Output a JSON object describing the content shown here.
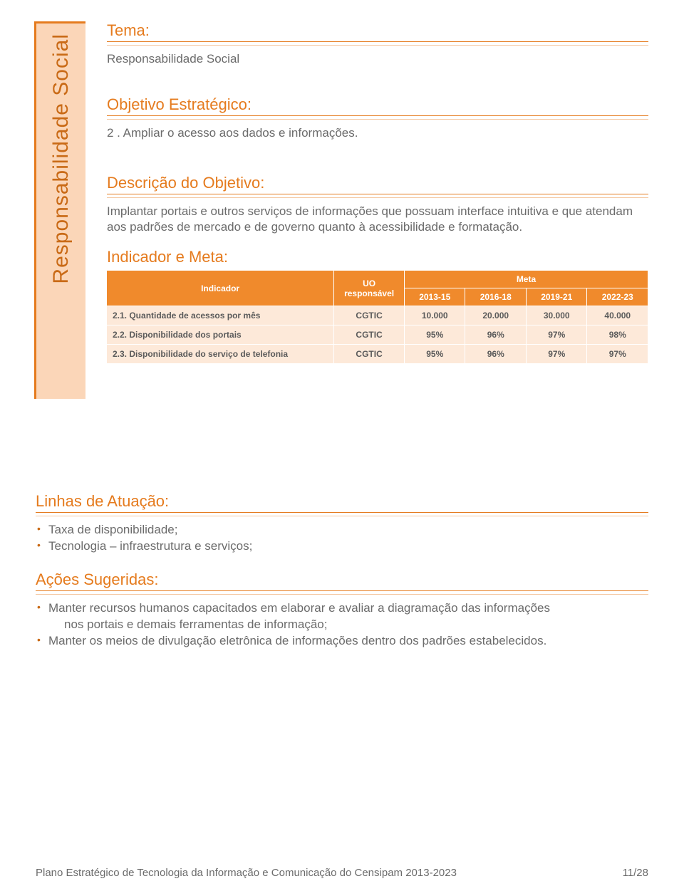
{
  "colors": {
    "accent": "#e57b1e",
    "accent_light": "#f4c9a4",
    "sidebar_bg": "#fbd6b8",
    "sidebar_text": "#c96a16",
    "table_header_bg": "#f08a2c",
    "table_header_text": "#ffffff",
    "table_cell_bg": "#fde9d9",
    "body_text": "#6b6b6b"
  },
  "sidebar": {
    "label": "Responsabilidade Social"
  },
  "sections": {
    "tema": {
      "heading": "Tema:",
      "text": "Responsabilidade Social"
    },
    "objetivo": {
      "heading": "Objetivo Estratégico:",
      "text": "2 . Ampliar o acesso aos dados e informações."
    },
    "descricao": {
      "heading": "Descrição do Objetivo:",
      "text": "Implantar portais e outros serviços de informações que possuam interface intuitiva e que atendam aos padrões de mercado e de governo quanto à acessibilidade e formatação."
    },
    "indicador": {
      "heading": "Indicador e Meta:"
    }
  },
  "indicator_table": {
    "columns": {
      "indicador": "Indicador",
      "uo": "UO responsável",
      "meta": "Meta",
      "periods": [
        "2013-15",
        "2016-18",
        "2019-21",
        "2022-23"
      ]
    },
    "rows": [
      {
        "name": "2.1. Quantidade de acessos por mês",
        "uo": "CGTIC",
        "values": [
          "10.000",
          "20.000",
          "30.000",
          "40.000"
        ]
      },
      {
        "name": "2.2. Disponibilidade dos portais",
        "uo": "CGTIC",
        "values": [
          "95%",
          "96%",
          "97%",
          "98%"
        ]
      },
      {
        "name": "2.3. Disponibilidade do serviço de telefonia",
        "uo": "CGTIC",
        "values": [
          "95%",
          "96%",
          "97%",
          "97%"
        ]
      }
    ]
  },
  "linhas": {
    "heading": "Linhas de Atuação:",
    "items": [
      "Taxa de disponibilidade;",
      "Tecnologia – infraestrutura e serviços;"
    ]
  },
  "acoes": {
    "heading": "Ações Sugeridas:",
    "items": [
      {
        "line1": "Manter recursos humanos capacitados em elaborar e avaliar a diagramação das informações",
        "line2": "nos portais e demais ferramentas de informação;"
      },
      {
        "line1": "Manter os meios de divulgação eletrônica de informações dentro dos padrões estabelecidos.",
        "line2": ""
      }
    ]
  },
  "footer": {
    "title": "Plano Estratégico de Tecnologia da Informação e Comunicação do Censipam 2013-2023",
    "page": "11/28"
  }
}
